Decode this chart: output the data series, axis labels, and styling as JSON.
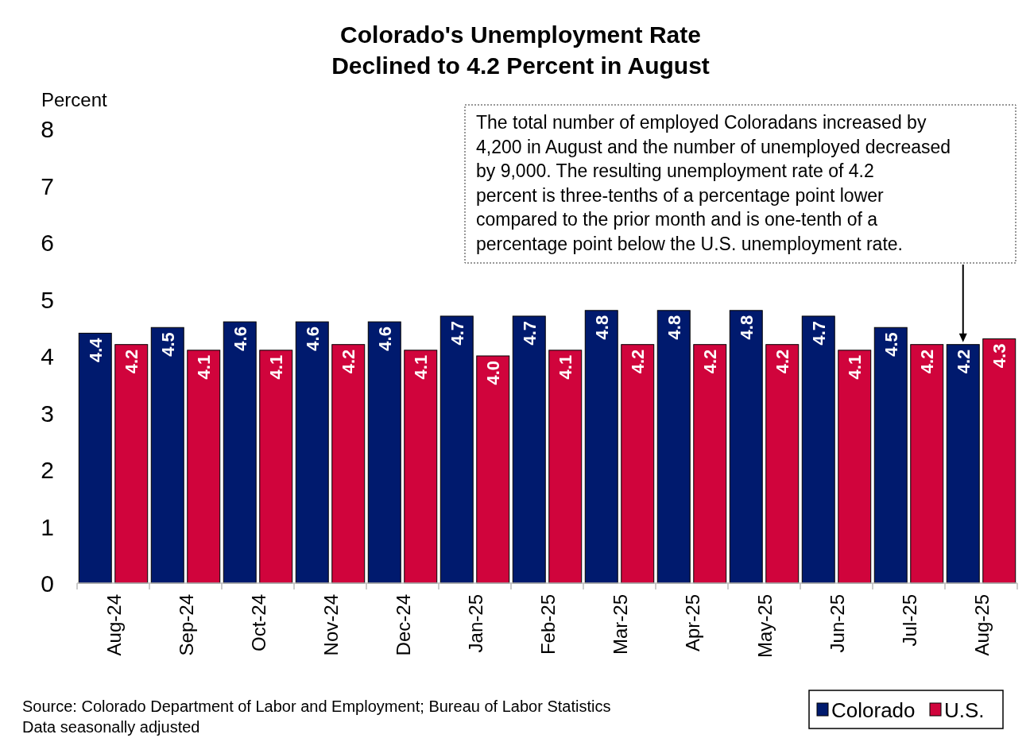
{
  "chart_data": {
    "type": "bar",
    "title": "Colorado's Unemployment Rate\nDeclined to 4.2 Percent in August",
    "ylabel": "Percent",
    "categories": [
      "Aug-24",
      "Sep-24",
      "Oct-24",
      "Nov-24",
      "Dec-24",
      "Jan-25",
      "Feb-25",
      "Mar-25",
      "Apr-25",
      "May-25",
      "Jun-25",
      "Jul-25",
      "Aug-25"
    ],
    "series": [
      {
        "name": "Colorado",
        "color": "#001a6e",
        "values": [
          4.4,
          4.5,
          4.6,
          4.6,
          4.6,
          4.7,
          4.7,
          4.8,
          4.8,
          4.8,
          4.7,
          4.5,
          4.2
        ],
        "value_labels": [
          "4.4",
          "4.5",
          "4.6",
          "4.6",
          "4.6",
          "4.7",
          "4.7",
          "4.8",
          "4.8",
          "4.8",
          "4.7",
          "4.5",
          "4.2"
        ]
      },
      {
        "name": "U.S.",
        "color": "#d0043c",
        "values": [
          4.2,
          4.1,
          4.1,
          4.2,
          4.1,
          4.0,
          4.1,
          4.2,
          4.2,
          4.2,
          4.1,
          4.2,
          4.3
        ],
        "value_labels": [
          "4.2",
          "4.1",
          "4.1",
          "4.2",
          "4.1",
          "4.0",
          "4.1",
          "4.2",
          "4.2",
          "4.2",
          "4.1",
          "4.2",
          "4.3"
        ]
      }
    ],
    "ylim": [
      0,
      8
    ],
    "yticks": [
      0,
      1,
      2,
      3,
      4,
      5,
      6,
      7,
      8
    ],
    "grid": false,
    "legend": "bottom right",
    "annotations": [
      "The total number of employed Coloradans increased by 4,200 in August and the number of unemployed decreased by 9,000. The resulting unemployment rate of 4.2 percent is three-tenths of a percentage point lower compared to the prior month and is one-tenth of a percentage point below the U.S. unemployment rate.",
      "Source: Colorado Department of Labor and Employment; Bureau of Labor Statistics",
      "Data seasonally adjusted"
    ]
  }
}
